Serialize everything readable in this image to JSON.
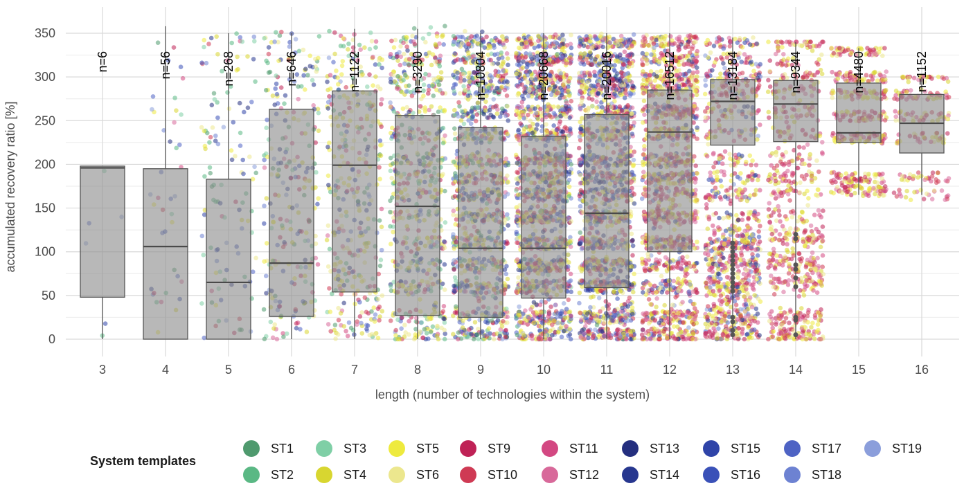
{
  "chart_data": {
    "type": "boxplot-jitter",
    "xlabel": "length (number of technologies within the system)",
    "ylabel": "accumulated recovery ratio [%]",
    "ylim": [
      0,
      360
    ],
    "yticks": [
      0,
      50,
      100,
      150,
      200,
      250,
      300,
      350
    ],
    "grid": true,
    "legend_position": "bottom",
    "legend_title": "System templates",
    "categories": [
      "3",
      "4",
      "5",
      "6",
      "7",
      "8",
      "9",
      "10",
      "11",
      "12",
      "13",
      "14",
      "15",
      "16"
    ],
    "counts": [
      "n=6",
      "n=56",
      "n=268",
      "n=646",
      "n=1122",
      "n=3290",
      "n=10804",
      "n=20668",
      "n=20016",
      "n=16512",
      "n=13184",
      "n=9344",
      "n=4480",
      "n=1152"
    ],
    "boxes": [
      {
        "category": "3",
        "min": 0,
        "q1": 48,
        "median": 196,
        "q3": 198,
        "max": 198
      },
      {
        "category": "4",
        "min": 0,
        "q1": 0,
        "median": 106,
        "q3": 195,
        "max": 358
      },
      {
        "category": "5",
        "min": 0,
        "q1": 0,
        "median": 65,
        "q3": 183,
        "max": 350
      },
      {
        "category": "6",
        "min": 0,
        "q1": 26,
        "median": 87,
        "q3": 263,
        "max": 350
      },
      {
        "category": "7",
        "min": 0,
        "q1": 54,
        "median": 199,
        "q3": 284,
        "max": 355
      },
      {
        "category": "8",
        "min": 0,
        "q1": 27,
        "median": 152,
        "q3": 256,
        "max": 355
      },
      {
        "category": "9",
        "min": 0,
        "q1": 25,
        "median": 104,
        "q3": 242,
        "max": 350
      },
      {
        "category": "10",
        "min": 0,
        "q1": 47,
        "median": 104,
        "q3": 232,
        "max": 350
      },
      {
        "category": "11",
        "min": 0,
        "q1": 59,
        "median": 144,
        "q3": 257,
        "max": 350
      },
      {
        "category": "12",
        "min": 0,
        "q1": 100,
        "median": 237,
        "q3": 285,
        "max": 350
      },
      {
        "category": "13",
        "min": 0,
        "q1": 222,
        "median": 272,
        "q3": 297,
        "max": 345
      },
      {
        "category": "14",
        "min": 0,
        "q1": 226,
        "median": 269,
        "q3": 296,
        "max": 340
      },
      {
        "category": "15",
        "min": 165,
        "q1": 225,
        "median": 236,
        "q3": 293,
        "max": 333
      },
      {
        "category": "16",
        "min": 165,
        "q1": 213,
        "median": 247,
        "q3": 280,
        "max": 300
      }
    ],
    "series": [
      {
        "name": "ST1",
        "color": "#4f9a6e"
      },
      {
        "name": "ST2",
        "color": "#5ab884"
      },
      {
        "name": "ST3",
        "color": "#7fcfa6"
      },
      {
        "name": "ST4",
        "color": "#d8d630"
      },
      {
        "name": "ST5",
        "color": "#eeea3e"
      },
      {
        "name": "ST6",
        "color": "#ece78e"
      },
      {
        "name": "ST9",
        "color": "#bf2256"
      },
      {
        "name": "ST10",
        "color": "#cf3a54"
      },
      {
        "name": "ST11",
        "color": "#d34882"
      },
      {
        "name": "ST12",
        "color": "#d8699a"
      },
      {
        "name": "ST13",
        "color": "#242f7f"
      },
      {
        "name": "ST14",
        "color": "#27378f"
      },
      {
        "name": "ST15",
        "color": "#2f44a8"
      },
      {
        "name": "ST16",
        "color": "#3a51b8"
      },
      {
        "name": "ST17",
        "color": "#4e63c4"
      },
      {
        "name": "ST18",
        "color": "#6d82d2"
      },
      {
        "name": "ST19",
        "color": "#8b9edb"
      }
    ]
  }
}
